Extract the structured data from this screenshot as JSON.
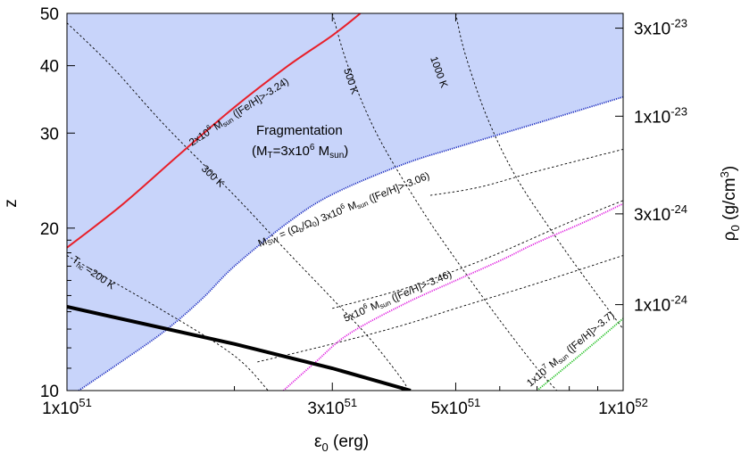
{
  "chart_data": {
    "type": "line",
    "xscale": "log",
    "yscale": "log",
    "xlim": [
      1e+51,
      1e+52
    ],
    "ylim": [
      10,
      50
    ],
    "xlabel": "ε0 (erg)",
    "ylabel": "z",
    "y2label": "ρ0 (g/cm3)",
    "grid": false,
    "x_ticks": [
      {
        "value": 1e+51,
        "label": "1x10",
        "exp": "51"
      },
      {
        "value": 3e+51,
        "label": "3x10",
        "exp": "51"
      },
      {
        "value": 5e+51,
        "label": "5x10",
        "exp": "51"
      },
      {
        "value": 1e+52,
        "label": "1x10",
        "exp": "52"
      }
    ],
    "y_ticks": [
      {
        "value": 10,
        "label": "10"
      },
      {
        "value": 20,
        "label": "20"
      },
      {
        "value": 30,
        "label": "30"
      },
      {
        "value": 40,
        "label": "40"
      },
      {
        "value": 50,
        "label": "50"
      }
    ],
    "y2_ticks": [
      {
        "value": 1e-24,
        "label": "1x10",
        "exp": "-24"
      },
      {
        "value": 3e-24,
        "label": "3x10",
        "exp": "-24"
      },
      {
        "value": 1e-23,
        "label": "1x10",
        "exp": "-23"
      },
      {
        "value": 3e-23,
        "label": "3x10",
        "exp": "-23"
      }
    ],
    "region": {
      "label": "Fragmentation",
      "sublabel": "(MT=3x10^6 Msun)",
      "color": "#c8d4fa"
    },
    "series": [
      {
        "key": "red",
        "color": "#e8202a",
        "style": "solid",
        "label": "2x10^6 Msun ([Fe/H]>-3.24)",
        "points": [
          [
            1e+51,
            18.4
          ],
          [
            1.25e+51,
            22.0
          ],
          [
            1.6e+51,
            27.5
          ],
          [
            2e+51,
            33.5
          ],
          [
            2.5e+51,
            40.0
          ],
          [
            3e+51,
            45.5
          ],
          [
            3.37e+51,
            50.0
          ]
        ]
      },
      {
        "key": "blue",
        "color": "#2030c0",
        "style": "dotted",
        "label": "Msw = (Ωb/Ω0) 3x10^6 Msun ([Fe/H]>-3.06)",
        "points": [
          [
            1.05e+51,
            10.0
          ],
          [
            1.25e+51,
            11.3
          ],
          [
            1.5e+51,
            12.9
          ],
          [
            1.75e+51,
            14.8
          ],
          [
            2e+51,
            17.0
          ],
          [
            2.5e+51,
            20.5
          ],
          [
            3e+51,
            23.1
          ],
          [
            4e+51,
            26.2
          ],
          [
            5e+51,
            28.2
          ],
          [
            7e+51,
            31.3
          ],
          [
            1e+52,
            35.0
          ]
        ]
      },
      {
        "key": "magenta",
        "color": "#e020e0",
        "style": "dotted",
        "label": "5x10^6 Msun ([Fe/H]>-3.46)",
        "points": [
          [
            2.45e+51,
            10.0
          ],
          [
            2.8e+51,
            11.3
          ],
          [
            3.2e+51,
            12.7
          ],
          [
            4e+51,
            14.4
          ],
          [
            5e+51,
            16.0
          ],
          [
            6e+51,
            17.4
          ],
          [
            7e+51,
            18.8
          ],
          [
            8.5e+51,
            20.5
          ],
          [
            1e+52,
            22.2
          ]
        ]
      },
      {
        "key": "green",
        "color": "#20c020",
        "style": "dotted",
        "label": "1x10^7 Msun ([Fe/H]>-3.7)",
        "points": [
          [
            7e+51,
            10.0
          ],
          [
            8e+51,
            11.2
          ],
          [
            9e+51,
            12.4
          ],
          [
            1e+52,
            13.6
          ]
        ]
      },
      {
        "key": "black",
        "color": "#000000",
        "style": "solid",
        "label": "",
        "points": [
          [
            1e+51,
            14.3
          ],
          [
            2e+51,
            12.2
          ],
          [
            3e+51,
            11.0
          ],
          [
            4.15e+51,
            10.0
          ]
        ]
      }
    ],
    "isotherms": [
      {
        "label": "Thc=200 K",
        "points": [
          [
            1e+51,
            17.8
          ],
          [
            1.5e+51,
            14.0
          ],
          [
            2e+51,
            11.6
          ],
          [
            2.3e+51,
            10.0
          ]
        ]
      },
      {
        "label": "300 K",
        "points": [
          [
            1e+51,
            48.0
          ],
          [
            1.2e+51,
            40.0
          ],
          [
            1.5e+51,
            31.0
          ],
          [
            2e+51,
            23.0
          ],
          [
            2.5e+51,
            18.0
          ],
          [
            3e+51,
            14.8
          ],
          [
            3.5e+51,
            12.5
          ],
          [
            4e+51,
            10.5
          ],
          [
            4.1e+51,
            10.0
          ]
        ]
      },
      {
        "label": "500 K",
        "points": [
          [
            3e+51,
            50.0
          ],
          [
            3.2e+51,
            40.0
          ],
          [
            3.6e+51,
            30.0
          ],
          [
            4.3e+51,
            22.0
          ],
          [
            5e+51,
            17.5
          ],
          [
            6e+51,
            13.5
          ],
          [
            7e+51,
            11.0
          ],
          [
            7.6e+51,
            10.0
          ]
        ]
      },
      {
        "label": "1000 K",
        "points": [
          [
            5e+51,
            50.0
          ],
          [
            5.2e+51,
            42.0
          ],
          [
            5.7e+51,
            32.0
          ],
          [
            6.4e+51,
            25.0
          ],
          [
            7.5e+51,
            19.5
          ],
          [
            8.8e+51,
            15.5
          ],
          [
            1e+52,
            13.0
          ]
        ]
      },
      {
        "label": "",
        "points": [
          [
            3e+51,
            14.2
          ],
          [
            4e+51,
            15.4
          ],
          [
            5e+51,
            16.7
          ],
          [
            6e+51,
            18.0
          ],
          [
            8e+51,
            20.5
          ],
          [
            1e+52,
            22.5
          ]
        ]
      },
      {
        "label": "",
        "points": [
          [
            2.2e+51,
            11.3
          ],
          [
            3e+51,
            12.2
          ],
          [
            4e+51,
            13.2
          ],
          [
            5e+51,
            14.2
          ],
          [
            7e+51,
            15.8
          ],
          [
            1e+52,
            17.8
          ]
        ]
      },
      {
        "label": "",
        "points": [
          [
            4.5e+51,
            23.0
          ],
          [
            5.5e+51,
            23.8
          ],
          [
            7e+51,
            25.5
          ],
          [
            1e+52,
            28.0
          ]
        ]
      }
    ],
    "annotations": {
      "red": {
        "pre": "2x10",
        "exp": "6",
        "mid": " M",
        "sub": "sun",
        "post": " ([Fe/H]>-3.24)"
      },
      "blue": {
        "pre": "M",
        "sub1": "SW",
        "mid": " = (Ω",
        "sub2": "b",
        "mid2": "/Ω",
        "sub3": "0",
        "mid3": ") 3x10",
        "exp": "6",
        "mid4": " M",
        "sub4": "sun",
        "post": " ([Fe/H]>-3.06)"
      },
      "magenta": {
        "pre": "5x10",
        "exp": "6",
        "mid": " M",
        "sub": "sun",
        "post": " ([Fe/H]>-3.46)"
      },
      "green": {
        "pre": "1x10",
        "exp": "7",
        "mid": " M",
        "sub": "sun",
        "post": " ([Fe/H]>-3.7)"
      },
      "t200": {
        "pre": "T",
        "sub": "hc",
        "post": " =200 K"
      },
      "t300": "300 K",
      "t500": "500 K",
      "t1000": "1000 K",
      "frag1": "Fragmentation",
      "frag2": {
        "pre": "(M",
        "sub": "T",
        "mid": "=3x10",
        "exp": "6",
        "mid2": " M",
        "sub2": "sun",
        "post": ")"
      }
    },
    "axis_text": {
      "xlabel_pre": "ε",
      "xlabel_sub": "0",
      "xlabel_post": " (erg)",
      "ylabel": "z",
      "y2label_pre": "ρ",
      "y2label_sub": "0",
      "y2label_post": " (g/cm",
      "y2label_exp": "3",
      "y2label_end": ")"
    }
  }
}
